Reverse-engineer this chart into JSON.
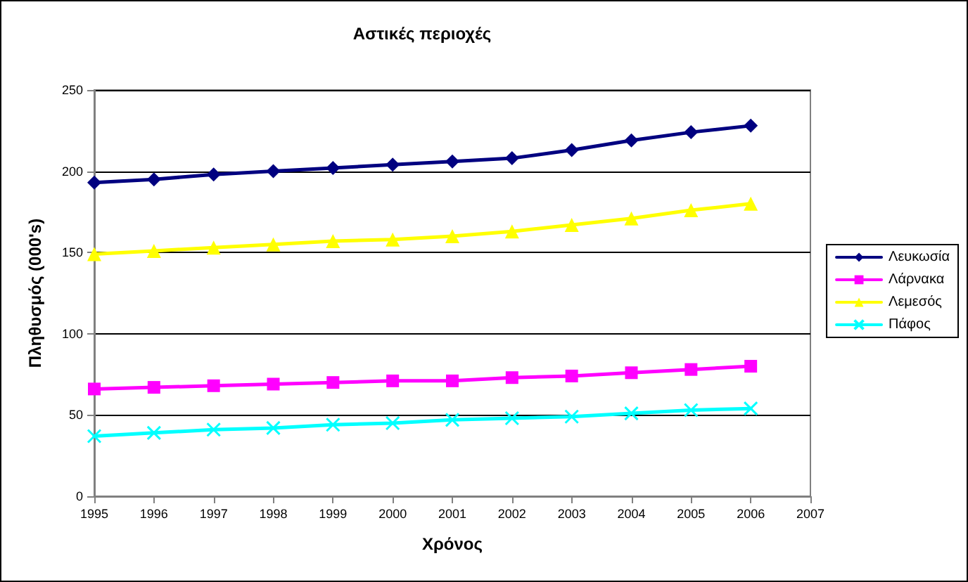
{
  "chart_data": {
    "type": "line",
    "title": "Αστικές περιοχές",
    "xlabel": "Χρόνος",
    "ylabel": "Πληθυσμός (000's)",
    "x": [
      1995,
      1996,
      1997,
      1998,
      1999,
      2000,
      2001,
      2002,
      2003,
      2004,
      2005,
      2006
    ],
    "series": [
      {
        "name": "Λευκωσία",
        "color": "#000080",
        "marker": "diamond",
        "values": [
          193,
          195,
          198,
          200,
          202,
          204,
          206,
          208,
          213,
          219,
          224,
          228
        ]
      },
      {
        "name": "Λάρνακα",
        "color": "#ff00ff",
        "marker": "square",
        "values": [
          66,
          67,
          68,
          69,
          70,
          71,
          71,
          73,
          74,
          76,
          78,
          80
        ]
      },
      {
        "name": "Λεμεσός",
        "color": "#ffff00",
        "marker": "triangle",
        "values": [
          149,
          151,
          153,
          155,
          157,
          158,
          160,
          163,
          167,
          171,
          176,
          180
        ]
      },
      {
        "name": "Πάφος",
        "color": "#00ffff",
        "marker": "cross",
        "values": [
          37,
          39,
          41,
          42,
          44,
          45,
          47,
          48,
          49,
          51,
          53,
          54
        ]
      }
    ],
    "xlim": [
      1995,
      2007
    ],
    "xticks": [
      1995,
      1996,
      1997,
      1998,
      1999,
      2000,
      2001,
      2002,
      2003,
      2004,
      2005,
      2006,
      2007
    ],
    "ylim": [
      0,
      250
    ],
    "yticks": [
      0,
      50,
      100,
      150,
      200,
      250
    ],
    "grid": "y",
    "legend": "right",
    "line_style": "solid"
  }
}
